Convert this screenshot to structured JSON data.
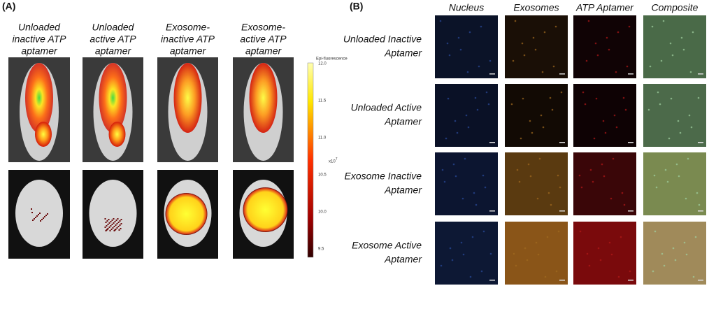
{
  "panel_a": {
    "label": "(A)",
    "columns": [
      [
        "Unloaded",
        "inactive ATP",
        "aptamer"
      ],
      [
        "Unloaded",
        "active ATP",
        "aptamer"
      ],
      [
        "Exosome-",
        "inactive ATP",
        "aptamer"
      ],
      [
        "Exosome-",
        "active ATP",
        "aptamer"
      ]
    ],
    "colorbar": {
      "title": "Epi-fluorescence",
      "ticks": [
        "12.0",
        "11.5",
        "11.0",
        "10.5",
        "10.0",
        "9.5"
      ],
      "unit_base": "x10",
      "unit_exponent": "7"
    }
  },
  "panel_b": {
    "label": "(B)",
    "columns": [
      "Nucleus",
      "Exosomes",
      "ATP Aptamer",
      "Composite"
    ],
    "rows": [
      [
        "Unloaded Inactive",
        "Aptamer"
      ],
      [
        "Unloaded Active",
        "Aptamer"
      ],
      [
        "Exosome Inactive",
        "Aptamer"
      ],
      [
        "Exosome Active",
        "Aptamer"
      ]
    ]
  }
}
